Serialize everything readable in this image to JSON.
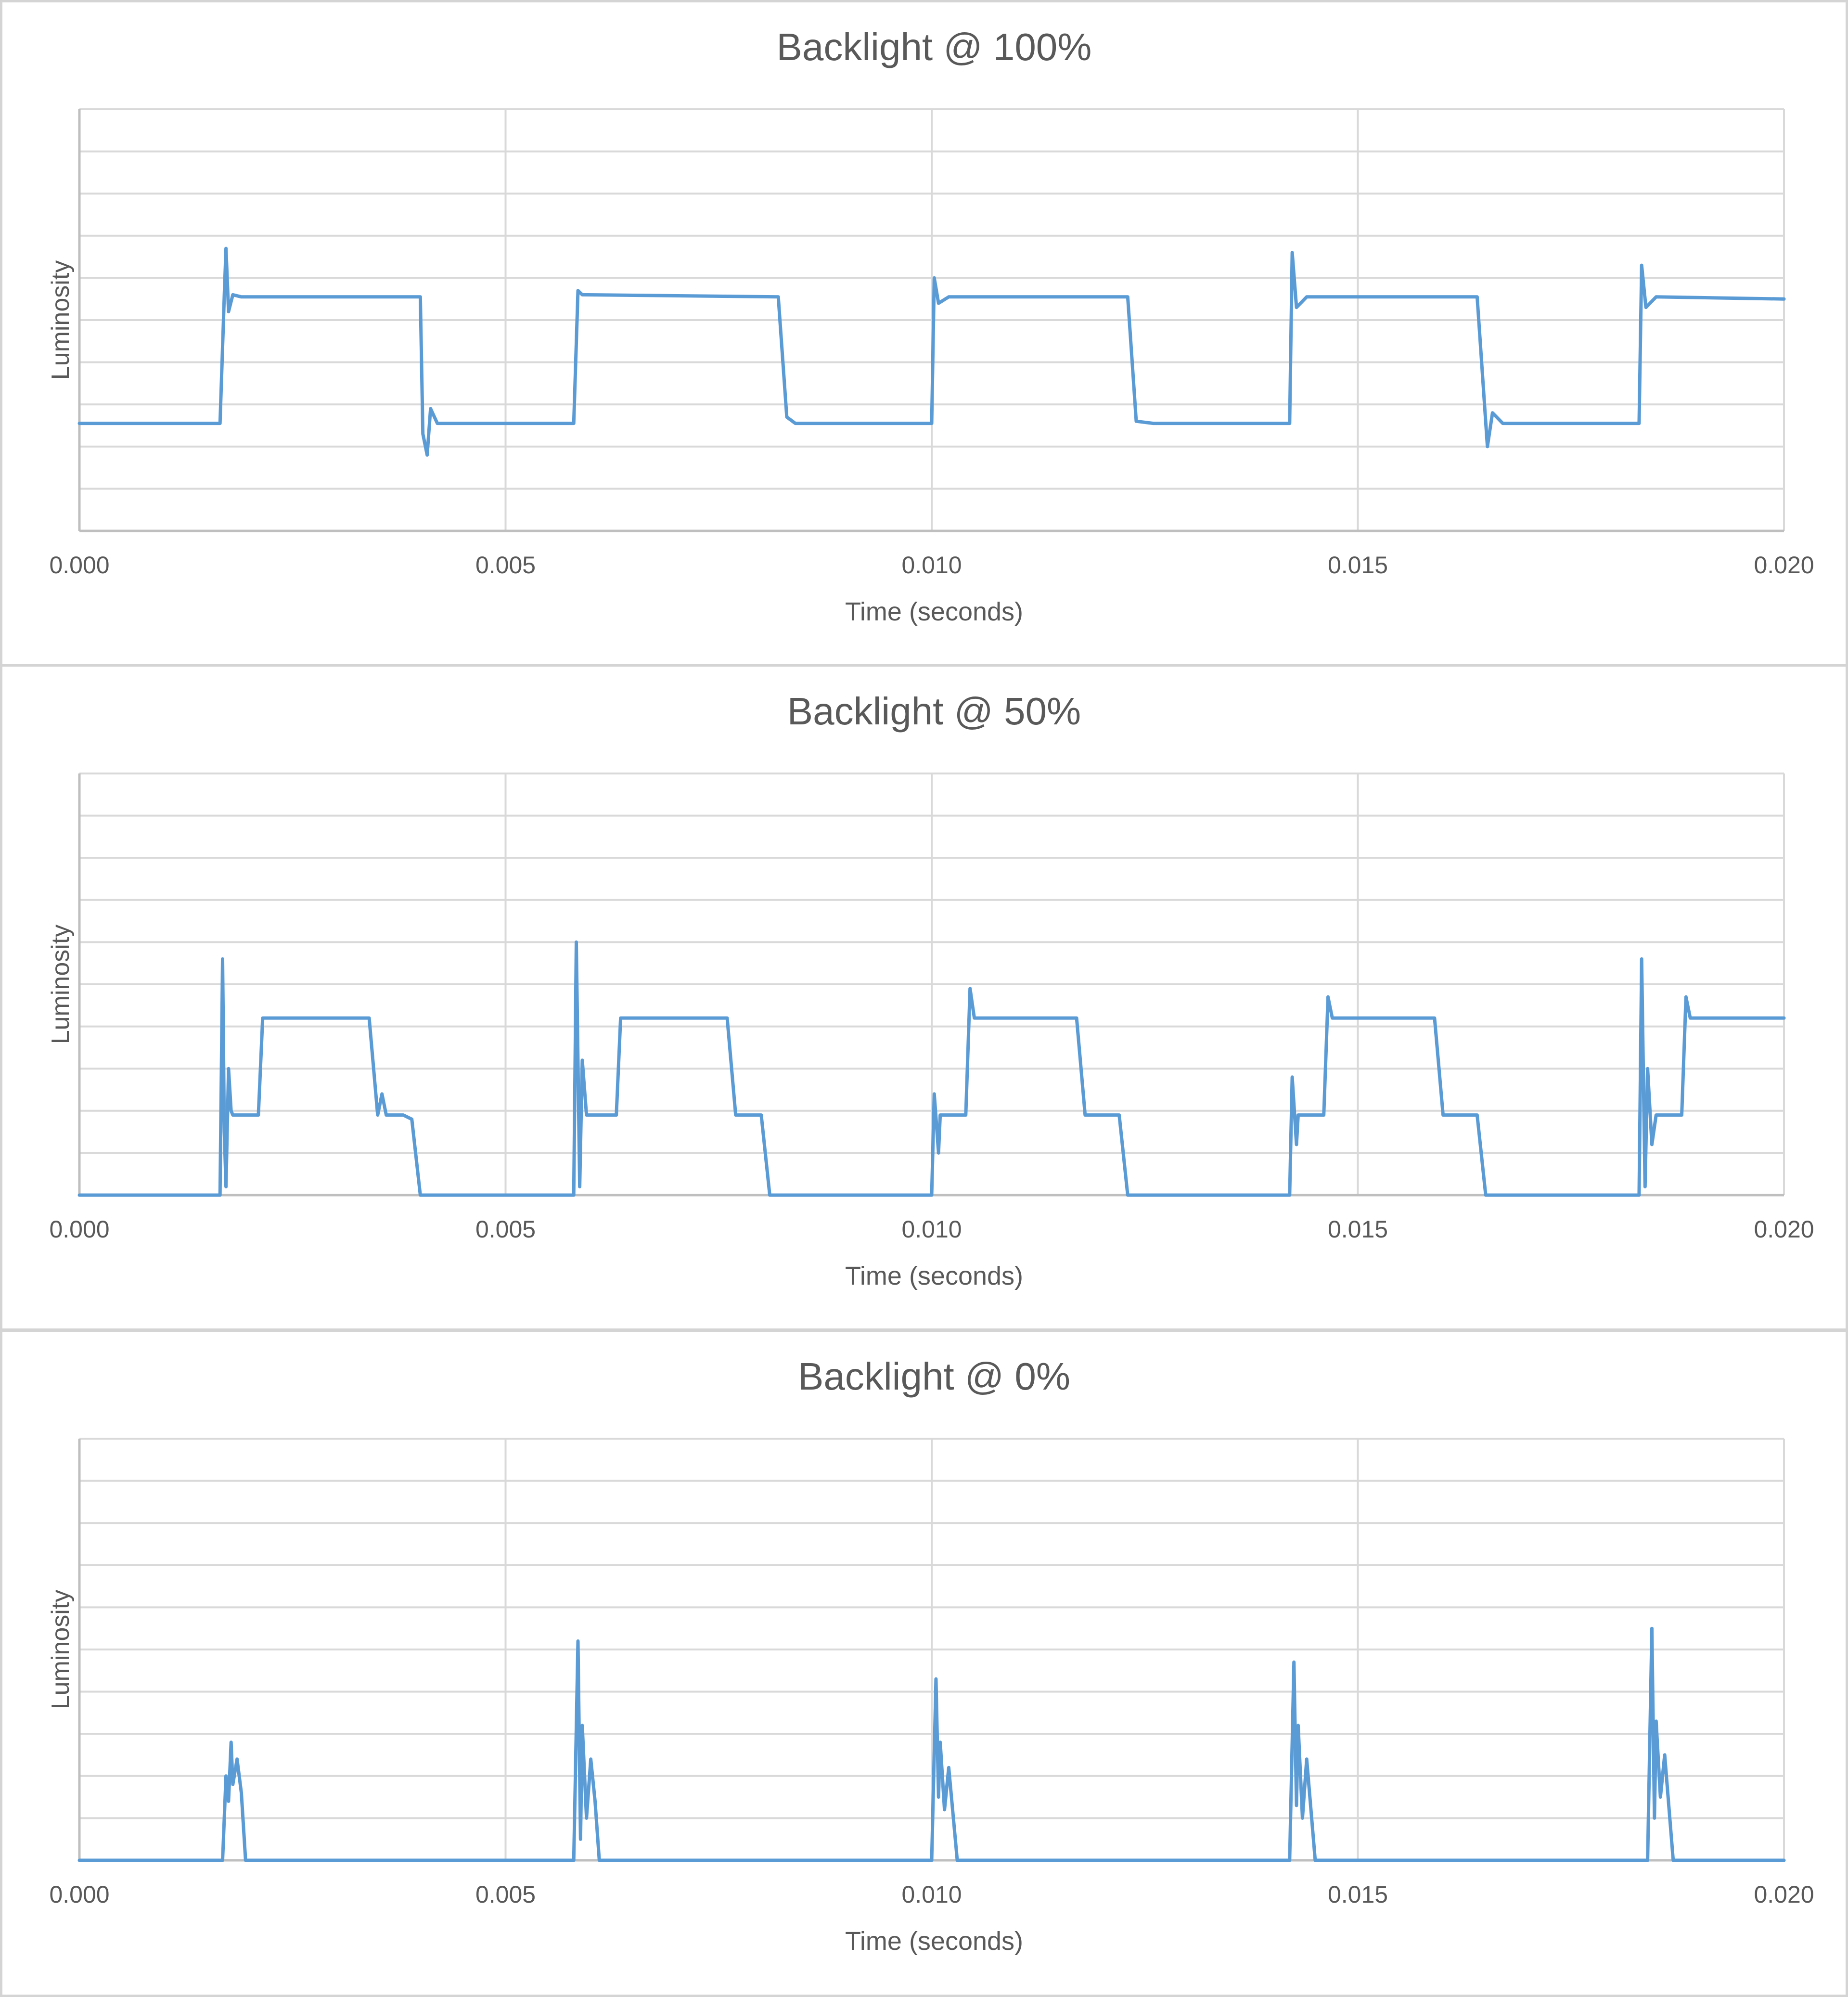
{
  "style": {
    "line_color": "#5b9bd5",
    "grid_color": "#d9d9d9",
    "axis_color": "#bfbfbf",
    "title_color": "#595959",
    "label_color": "#595959",
    "border_color": "#d4d4d4"
  },
  "chart_data": [
    {
      "type": "line",
      "title": "Backlight @ 100%",
      "xlabel": "Time (seconds)",
      "ylabel": "Luminosity",
      "xlim": [
        0,
        0.02
      ],
      "ylim": [
        0,
        10
      ],
      "y_tick_labels_shown": false,
      "grid": "horizontal-and-vertical",
      "x_ticks": [
        "0.000",
        "0.005",
        "0.010",
        "0.015",
        "0.020"
      ],
      "series": [
        {
          "values_by_time": {
            "x": [
              0,
              0.00165,
              0.0017,
              0.00172,
              0.00175,
              0.0018,
              0.0019,
              0.004,
              0.00403,
              0.00408,
              0.00412,
              0.0042,
              0.0058,
              0.00585,
              0.0059,
              0.0082,
              0.0083,
              0.0084,
              0.01,
              0.01003,
              0.01008,
              0.0102,
              0.0123,
              0.0124,
              0.0126,
              0.0142,
              0.01423,
              0.01428,
              0.0144,
              0.0164,
              0.01652,
              0.01658,
              0.0167,
              0.0183,
              0.01833,
              0.01838,
              0.0185,
              0.02
            ],
            "y": [
              2.55,
              2.55,
              5.6,
              6.7,
              5.2,
              5.6,
              5.55,
              5.55,
              2.3,
              1.8,
              2.9,
              2.55,
              2.55,
              5.7,
              5.6,
              5.55,
              2.7,
              2.55,
              2.55,
              6.0,
              5.4,
              5.55,
              5.55,
              2.6,
              2.55,
              2.55,
              6.6,
              5.3,
              5.55,
              5.55,
              2.0,
              2.8,
              2.55,
              2.55,
              6.3,
              5.3,
              5.55,
              5.5
            ]
          }
        }
      ]
    },
    {
      "type": "line",
      "title": "Backlight @ 50%",
      "xlabel": "Time (seconds)",
      "ylabel": "Luminosity",
      "xlim": [
        0,
        0.02
      ],
      "ylim": [
        0,
        10
      ],
      "y_tick_labels_shown": false,
      "grid": "horizontal-and-vertical",
      "x_ticks": [
        "0.000",
        "0.005",
        "0.010",
        "0.015",
        "0.020"
      ],
      "series": [
        {
          "values_by_time": {
            "x": [
              0,
              0.00165,
              0.00168,
              0.0017,
              0.00172,
              0.00175,
              0.00178,
              0.0018,
              0.0019,
              0.0021,
              0.00215,
              0.0022,
              0.0034,
              0.0035,
              0.00355,
              0.0036,
              0.0038,
              0.0039,
              0.004,
              0.0058,
              0.00583,
              0.00587,
              0.0059,
              0.00595,
              0.006,
              0.0063,
              0.00635,
              0.0064,
              0.0076,
              0.0077,
              0.0078,
              0.008,
              0.0081,
              0.01,
              0.01003,
              0.01008,
              0.0101,
              0.0104,
              0.01045,
              0.0105,
              0.0117,
              0.0118,
              0.0122,
              0.0123,
              0.0142,
              0.01423,
              0.01428,
              0.0143,
              0.0146,
              0.01465,
              0.0147,
              0.0159,
              0.016,
              0.0164,
              0.0165,
              0.0183,
              0.01833,
              0.01837,
              0.0184,
              0.01845,
              0.0185,
              0.0188,
              0.01885,
              0.0189,
              0.02
            ],
            "y": [
              0,
              0,
              5.6,
              1.5,
              0.2,
              3.0,
              2.0,
              1.9,
              1.9,
              1.9,
              4.2,
              4.2,
              4.2,
              1.9,
              2.4,
              1.9,
              1.9,
              1.8,
              0,
              0,
              6.0,
              0.2,
              3.2,
              1.9,
              1.9,
              1.9,
              4.2,
              4.2,
              4.2,
              1.9,
              1.9,
              1.9,
              0,
              0,
              2.4,
              1.0,
              1.9,
              1.9,
              4.9,
              4.2,
              4.2,
              1.9,
              1.9,
              0,
              0,
              2.8,
              1.2,
              1.9,
              1.9,
              4.7,
              4.2,
              4.2,
              1.9,
              1.9,
              0,
              0,
              5.6,
              0.2,
              3.0,
              1.2,
              1.9,
              1.9,
              4.7,
              4.2,
              4.2
            ]
          }
        }
      ]
    },
    {
      "type": "line",
      "title": "Backlight @ 0%",
      "xlabel": "Time (seconds)",
      "ylabel": "Luminosity",
      "xlim": [
        0,
        0.02
      ],
      "ylim": [
        0,
        10
      ],
      "y_tick_labels_shown": false,
      "grid": "horizontal-and-vertical",
      "x_ticks": [
        "0.000",
        "0.005",
        "0.010",
        "0.015",
        "0.020"
      ],
      "series": [
        {
          "values_by_time": {
            "x": [
              0,
              0.00168,
              0.00172,
              0.00175,
              0.00178,
              0.0018,
              0.00185,
              0.0019,
              0.00195,
              0.002,
              0.0058,
              0.00585,
              0.00588,
              0.0059,
              0.00595,
              0.006,
              0.00605,
              0.0061,
              0.0062,
              0.01,
              0.01005,
              0.01008,
              0.0101,
              0.01015,
              0.0102,
              0.0103,
              0.0104,
              0.0142,
              0.01425,
              0.01428,
              0.0143,
              0.01435,
              0.0144,
              0.0145,
              0.0146,
              0.0184,
              0.01845,
              0.01848,
              0.0185,
              0.01855,
              0.0186,
              0.0187,
              0.0188,
              0.02
            ],
            "y": [
              0,
              0,
              2.0,
              1.4,
              2.8,
              1.8,
              2.4,
              1.6,
              0,
              0,
              0,
              5.2,
              0.5,
              3.2,
              1.0,
              2.4,
              1.4,
              0,
              0,
              0,
              4.3,
              1.5,
              2.8,
              1.2,
              2.2,
              0,
              0,
              0,
              4.7,
              1.3,
              3.2,
              1.0,
              2.4,
              0,
              0,
              0,
              5.5,
              1.0,
              3.3,
              1.5,
              2.5,
              0,
              0,
              0
            ]
          }
        }
      ]
    }
  ]
}
